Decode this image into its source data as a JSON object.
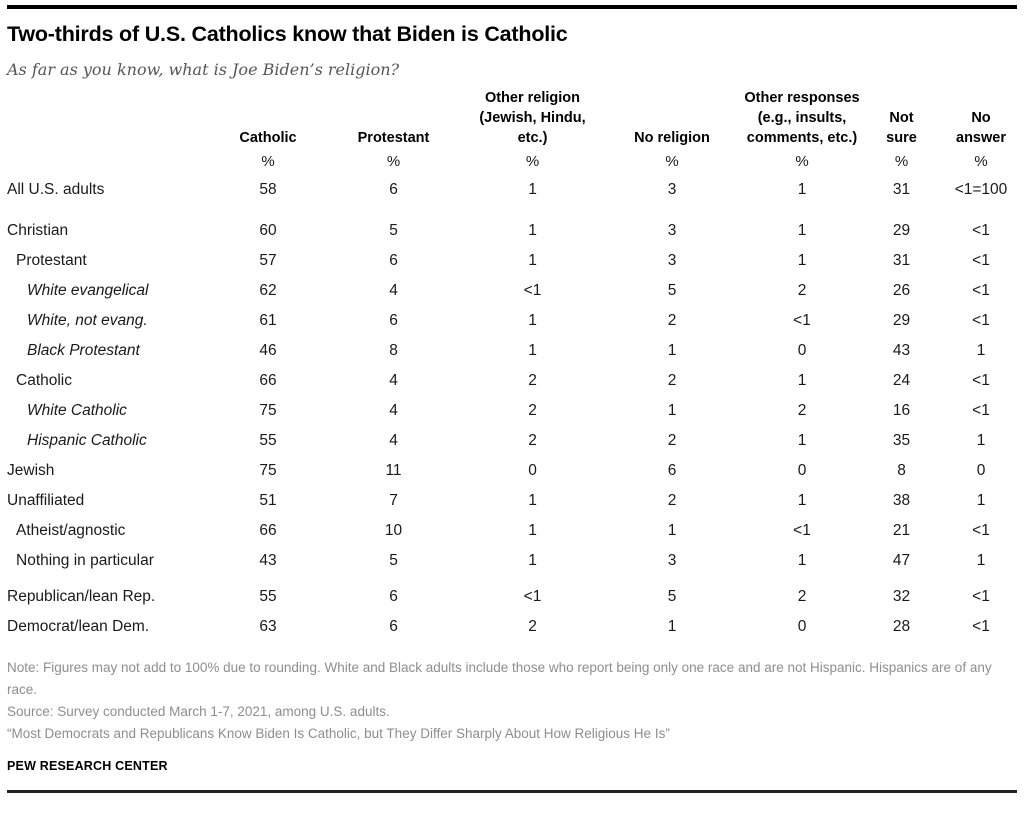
{
  "header": {
    "title": "Two-thirds of U.S. Catholics know that Biden is Catholic",
    "subtitle": "As far as you know, what is Joe Biden’s religion?"
  },
  "chart_data": {
    "type": "table",
    "title": "Two-thirds of U.S. Catholics know that Biden is Catholic",
    "subtitle": "As far as you know, what is Joe Biden’s religion?",
    "columns": [
      "Catholic",
      "Protestant",
      "Other religion\n(Jewish, Hindu,\netc.)",
      "No religion",
      "Other responses\n(e.g., insults,\ncomments, etc.)",
      "Not\nsure",
      "No\nanswer"
    ],
    "unit_row": [
      "%",
      "%",
      "%",
      "%",
      "%",
      "%",
      "%"
    ],
    "rows": [
      {
        "label": "All U.S. adults",
        "indent": 0,
        "italic": false,
        "gap": "none",
        "values": [
          "58",
          "6",
          "1",
          "3",
          "1",
          "31",
          "<1=100"
        ]
      },
      {
        "label": "Christian",
        "indent": 0,
        "italic": false,
        "gap": "large",
        "values": [
          "60",
          "5",
          "1",
          "3",
          "1",
          "29",
          "<1"
        ]
      },
      {
        "label": "Protestant",
        "indent": 1,
        "italic": false,
        "gap": "none",
        "values": [
          "57",
          "6",
          "1",
          "3",
          "1",
          "31",
          "<1"
        ]
      },
      {
        "label": "White evangelical",
        "indent": 2,
        "italic": true,
        "gap": "none",
        "values": [
          "62",
          "4",
          "<1",
          "5",
          "2",
          "26",
          "<1"
        ]
      },
      {
        "label": "White, not evang.",
        "indent": 2,
        "italic": true,
        "gap": "none",
        "values": [
          "61",
          "6",
          "1",
          "2",
          "<1",
          "29",
          "<1"
        ]
      },
      {
        "label": "Black Protestant",
        "indent": 2,
        "italic": true,
        "gap": "none",
        "values": [
          "46",
          "8",
          "1",
          "1",
          "0",
          "43",
          "1"
        ]
      },
      {
        "label": "Catholic",
        "indent": 1,
        "italic": false,
        "gap": "none",
        "values": [
          "66",
          "4",
          "2",
          "2",
          "1",
          "24",
          "<1"
        ]
      },
      {
        "label": "White Catholic",
        "indent": 2,
        "italic": true,
        "gap": "none",
        "values": [
          "75",
          "4",
          "2",
          "1",
          "2",
          "16",
          "<1"
        ]
      },
      {
        "label": "Hispanic Catholic",
        "indent": 2,
        "italic": true,
        "gap": "none",
        "values": [
          "55",
          "4",
          "2",
          "2",
          "1",
          "35",
          "1"
        ]
      },
      {
        "label": "Jewish",
        "indent": 0,
        "italic": false,
        "gap": "none",
        "values": [
          "75",
          "11",
          "0",
          "6",
          "0",
          "8",
          "0"
        ]
      },
      {
        "label": "Unaffiliated",
        "indent": 0,
        "italic": false,
        "gap": "none",
        "values": [
          "51",
          "7",
          "1",
          "2",
          "1",
          "38",
          "1"
        ]
      },
      {
        "label": "Atheist/agnostic",
        "indent": 1,
        "italic": false,
        "gap": "none",
        "values": [
          "66",
          "10",
          "1",
          "1",
          "<1",
          "21",
          "<1"
        ]
      },
      {
        "label": "Nothing in particular",
        "indent": 1,
        "italic": false,
        "gap": "none",
        "values": [
          "43",
          "5",
          "1",
          "3",
          "1",
          "47",
          "1"
        ]
      },
      {
        "label": "Republican/lean Rep.",
        "indent": 0,
        "italic": false,
        "gap": "small",
        "values": [
          "55",
          "6",
          "<1",
          "5",
          "2",
          "32",
          "<1"
        ]
      },
      {
        "label": "Democrat/lean Dem.",
        "indent": 0,
        "italic": false,
        "gap": "none",
        "values": [
          "63",
          "6",
          "2",
          "1",
          "0",
          "28",
          "<1"
        ]
      }
    ],
    "layout": {
      "grid": "off",
      "row_label_column_header": ""
    }
  },
  "footer": {
    "note": "Note: Figures may not add to 100% due to rounding. White and Black adults include those who report being only one race and are not Hispanic. Hispanics are of any race.",
    "source": "Source: Survey conducted March 1-7, 2021, among U.S. adults.",
    "quote": "“Most Democrats and Republicans Know Biden Is Catholic, but They Differ Sharply About How Religious He Is”",
    "brand": "PEW RESEARCH CENTER"
  },
  "colors": {
    "title": "#000000",
    "subtitle": "#565656",
    "body_text": "#1a1a1a",
    "note_text": "#8e8e8e",
    "rule": "#000000",
    "background": "#ffffff"
  }
}
